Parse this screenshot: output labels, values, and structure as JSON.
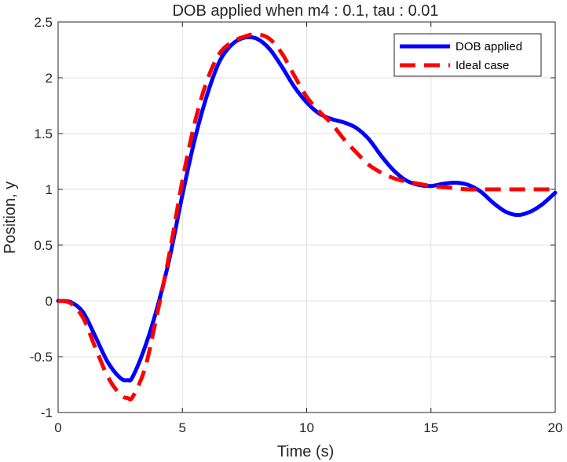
{
  "chart_data": {
    "type": "line",
    "title": "DOB applied when m4 : 0.1, tau : 0.01",
    "xlabel": "Time (s)",
    "ylabel": "Position, y",
    "xlim": [
      0,
      20
    ],
    "ylim": [
      -1,
      2.5
    ],
    "x_ticks": [
      "0",
      "5",
      "10",
      "15",
      "20"
    ],
    "y_ticks": [
      "-1",
      "-0.5",
      "0",
      "0.5",
      "1",
      "1.5",
      "2",
      "2.5"
    ],
    "grid": true,
    "legend_position": "top-right",
    "series": [
      {
        "name": "DOB applied",
        "color": "#0000ff",
        "style": "solid",
        "x": [
          0,
          0.5,
          1,
          1.5,
          2,
          2.5,
          2.8,
          3,
          3.5,
          4,
          4.5,
          5,
          5.5,
          6,
          6.5,
          7,
          7.5,
          8,
          8.5,
          9,
          9.5,
          10,
          10.5,
          11,
          11.5,
          12,
          12.5,
          13,
          13.5,
          14,
          14.5,
          15,
          15.5,
          16,
          16.5,
          17,
          17.5,
          18,
          18.5,
          19,
          19.5,
          20
        ],
        "y": [
          0,
          -0.01,
          -0.1,
          -0.32,
          -0.55,
          -0.69,
          -0.71,
          -0.68,
          -0.41,
          -0.05,
          0.4,
          0.95,
          1.45,
          1.85,
          2.15,
          2.3,
          2.36,
          2.35,
          2.26,
          2.1,
          1.92,
          1.78,
          1.68,
          1.63,
          1.6,
          1.55,
          1.45,
          1.3,
          1.17,
          1.08,
          1.04,
          1.03,
          1.05,
          1.06,
          1.04,
          0.98,
          0.88,
          0.8,
          0.77,
          0.8,
          0.87,
          0.97
        ]
      },
      {
        "name": "Ideal case",
        "color": "#ff0000",
        "style": "dashed",
        "x": [
          0,
          0.5,
          1,
          1.5,
          2,
          2.5,
          2.8,
          3,
          3.5,
          4,
          4.5,
          5,
          5.5,
          6,
          6.5,
          7,
          7.5,
          8,
          8.5,
          9,
          9.5,
          10,
          10.5,
          11,
          11.5,
          12,
          12.5,
          13,
          13.5,
          14,
          14.5,
          15,
          15.5,
          16,
          16.5,
          17,
          17.5,
          18,
          18.5,
          19,
          19.5,
          20
        ],
        "y": [
          0,
          -0.02,
          -0.15,
          -0.42,
          -0.68,
          -0.84,
          -0.87,
          -0.86,
          -0.6,
          -0.1,
          0.45,
          1.08,
          1.6,
          1.98,
          2.22,
          2.32,
          2.37,
          2.39,
          2.35,
          2.22,
          2.02,
          1.83,
          1.7,
          1.59,
          1.45,
          1.33,
          1.22,
          1.15,
          1.1,
          1.07,
          1.05,
          1.03,
          1.02,
          1.01,
          1.0,
          1.0,
          1.0,
          1.0,
          1.0,
          1.0,
          1.0,
          1.0
        ]
      }
    ]
  }
}
